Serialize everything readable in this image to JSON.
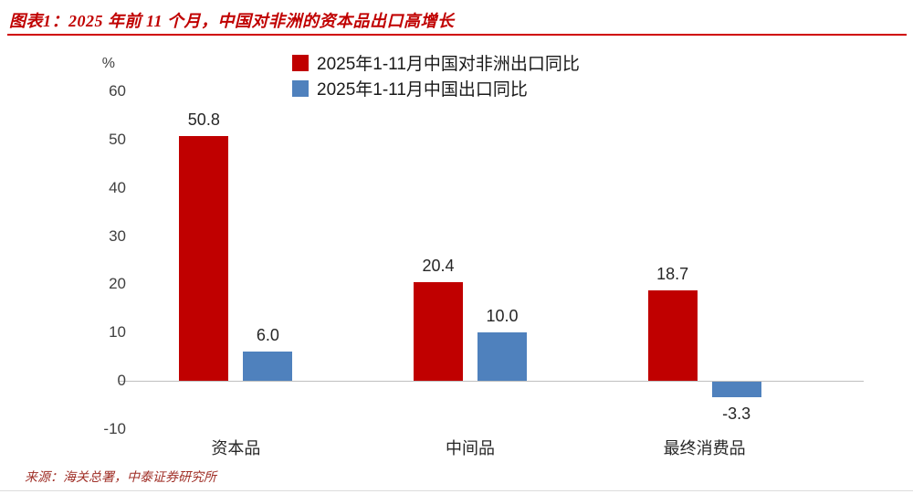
{
  "header": {
    "title": "图表1：2025 年前 11 个月，中国对非洲的资本品出口高增长"
  },
  "chart_data": {
    "type": "bar",
    "title": "图表1：2025 年前 11 个月，中国对非洲的资本品出口高增长",
    "categories": [
      "资本品",
      "中间品",
      "最终消费品"
    ],
    "series": [
      {
        "name": "2025年1-11月中国对非洲出口同比",
        "color": "#c00000",
        "values": [
          50.8,
          20.4,
          18.7
        ]
      },
      {
        "name": "2025年1-11月中国出口同比",
        "color": "#4f81bd",
        "values": [
          6.0,
          10.0,
          -3.3
        ]
      }
    ],
    "xlabel": "",
    "ylabel": "%",
    "ylim": [
      -10,
      60
    ],
    "yticks": [
      60,
      50,
      40,
      30,
      20,
      10,
      0,
      -10
    ],
    "grid": false,
    "legend_position": "top-center",
    "value_labels_shown": true
  },
  "theme": {
    "accent_red": "#c00000",
    "accent_blue": "#4f81bd",
    "axis_line": "#bfbfbf",
    "text": "#262626"
  },
  "footer": {
    "source": "来源：海关总署，中泰证券研究所"
  }
}
